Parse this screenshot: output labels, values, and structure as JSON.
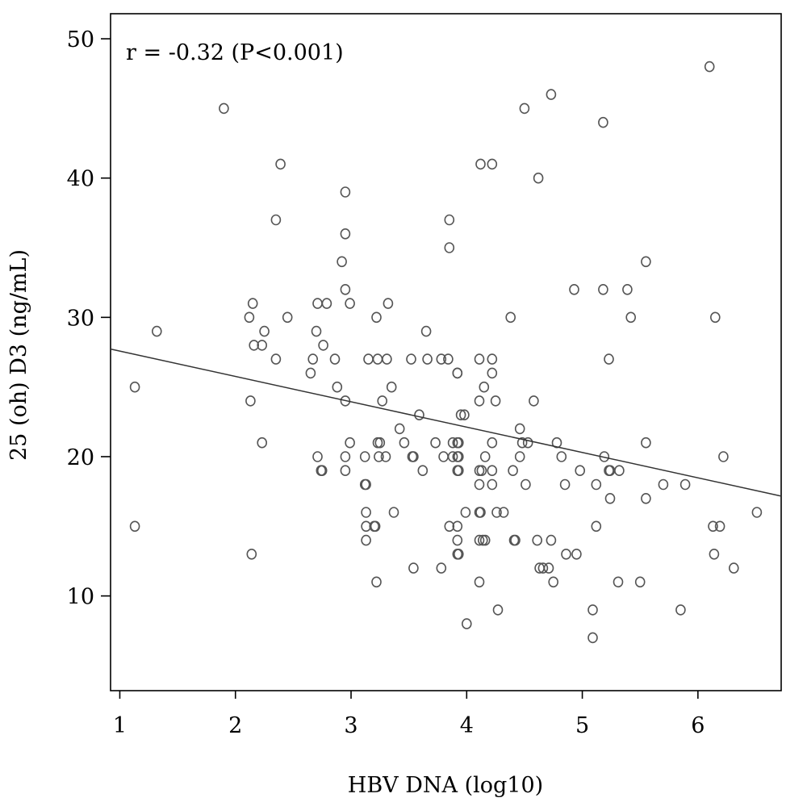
{
  "chart_data": {
    "type": "scatter",
    "xlabel": "HBV DNA (log10)",
    "ylabel": "25 (oh) D3 (ng/mL)",
    "annotation": "r = -0.32 (P<0.001)",
    "xlim": [
      0.92,
      6.72
    ],
    "ylim": [
      3.2,
      51.8
    ],
    "xticks": [
      1,
      2,
      3,
      4,
      5,
      6
    ],
    "yticks": [
      10,
      20,
      30,
      40,
      50
    ],
    "xtick_labels": [
      "1",
      "2",
      "3",
      "4",
      "5",
      "6"
    ],
    "ytick_labels": [
      "10",
      "20",
      "30",
      "40",
      "50"
    ],
    "grid": false,
    "legend": false,
    "fit_line": {
      "slope": -1.82,
      "intercept": 29.4,
      "x_range": [
        0.92,
        6.72
      ]
    },
    "points": [
      [
        1.13,
        25
      ],
      [
        1.13,
        15
      ],
      [
        1.32,
        29
      ],
      [
        1.9,
        45
      ],
      [
        2.12,
        30
      ],
      [
        2.13,
        24
      ],
      [
        2.14,
        13
      ],
      [
        2.15,
        31
      ],
      [
        2.16,
        28
      ],
      [
        2.23,
        28
      ],
      [
        2.23,
        21
      ],
      [
        2.25,
        29
      ],
      [
        2.35,
        37
      ],
      [
        2.35,
        27
      ],
      [
        2.39,
        41
      ],
      [
        2.45,
        30
      ],
      [
        2.65,
        26
      ],
      [
        2.67,
        27
      ],
      [
        2.7,
        29
      ],
      [
        2.71,
        20
      ],
      [
        2.71,
        31
      ],
      [
        2.74,
        19
      ],
      [
        2.75,
        19
      ],
      [
        2.76,
        28
      ],
      [
        2.79,
        31
      ],
      [
        2.86,
        27
      ],
      [
        2.88,
        25
      ],
      [
        2.92,
        34
      ],
      [
        2.95,
        39
      ],
      [
        2.95,
        36
      ],
      [
        2.95,
        32
      ],
      [
        2.95,
        24
      ],
      [
        2.95,
        20
      ],
      [
        2.95,
        19
      ],
      [
        2.99,
        31
      ],
      [
        2.99,
        21
      ],
      [
        3.12,
        20
      ],
      [
        3.12,
        18
      ],
      [
        3.13,
        18
      ],
      [
        3.13,
        16
      ],
      [
        3.13,
        15
      ],
      [
        3.13,
        14
      ],
      [
        3.15,
        27
      ],
      [
        3.2,
        15
      ],
      [
        3.21,
        15
      ],
      [
        3.22,
        11
      ],
      [
        3.22,
        30
      ],
      [
        3.23,
        27
      ],
      [
        3.23,
        21
      ],
      [
        3.24,
        20
      ],
      [
        3.25,
        21
      ],
      [
        3.27,
        24
      ],
      [
        3.3,
        20
      ],
      [
        3.31,
        27
      ],
      [
        3.32,
        31
      ],
      [
        3.35,
        25
      ],
      [
        3.37,
        16
      ],
      [
        3.42,
        22
      ],
      [
        3.46,
        21
      ],
      [
        3.52,
        27
      ],
      [
        3.53,
        20
      ],
      [
        3.54,
        20
      ],
      [
        3.54,
        12
      ],
      [
        3.59,
        23
      ],
      [
        3.62,
        19
      ],
      [
        3.65,
        29
      ],
      [
        3.66,
        27
      ],
      [
        3.73,
        21
      ],
      [
        3.78,
        27
      ],
      [
        3.78,
        12
      ],
      [
        3.8,
        20
      ],
      [
        3.84,
        27
      ],
      [
        3.85,
        37
      ],
      [
        3.85,
        35
      ],
      [
        3.85,
        15
      ],
      [
        3.88,
        20
      ],
      [
        3.88,
        21
      ],
      [
        3.92,
        26
      ],
      [
        3.92,
        26
      ],
      [
        3.92,
        21
      ],
      [
        3.92,
        20
      ],
      [
        3.92,
        19
      ],
      [
        3.92,
        15
      ],
      [
        3.92,
        14
      ],
      [
        3.92,
        13
      ],
      [
        3.93,
        21
      ],
      [
        3.93,
        20
      ],
      [
        3.93,
        19
      ],
      [
        3.93,
        13
      ],
      [
        3.95,
        23
      ],
      [
        3.98,
        23
      ],
      [
        3.99,
        16
      ],
      [
        4.0,
        8
      ],
      [
        4.11,
        27
      ],
      [
        4.11,
        24
      ],
      [
        4.11,
        19
      ],
      [
        4.11,
        18
      ],
      [
        4.11,
        16
      ],
      [
        4.11,
        14
      ],
      [
        4.11,
        11
      ],
      [
        4.12,
        41
      ],
      [
        4.12,
        16
      ],
      [
        4.13,
        19
      ],
      [
        4.14,
        14
      ],
      [
        4.15,
        25
      ],
      [
        4.16,
        14
      ],
      [
        4.16,
        20
      ],
      [
        4.22,
        41
      ],
      [
        4.22,
        27
      ],
      [
        4.22,
        26
      ],
      [
        4.22,
        21
      ],
      [
        4.22,
        19
      ],
      [
        4.22,
        18
      ],
      [
        4.25,
        24
      ],
      [
        4.26,
        16
      ],
      [
        4.27,
        9
      ],
      [
        4.32,
        16
      ],
      [
        4.38,
        30
      ],
      [
        4.4,
        19
      ],
      [
        4.41,
        14
      ],
      [
        4.42,
        14
      ],
      [
        4.46,
        22
      ],
      [
        4.46,
        20
      ],
      [
        4.48,
        21
      ],
      [
        4.5,
        45
      ],
      [
        4.51,
        18
      ],
      [
        4.53,
        21
      ],
      [
        4.58,
        24
      ],
      [
        4.61,
        14
      ],
      [
        4.62,
        40
      ],
      [
        4.63,
        12
      ],
      [
        4.66,
        12
      ],
      [
        4.71,
        12
      ],
      [
        4.73,
        46
      ],
      [
        4.73,
        14
      ],
      [
        4.75,
        11
      ],
      [
        4.78,
        21
      ],
      [
        4.82,
        20
      ],
      [
        4.85,
        18
      ],
      [
        4.86,
        13
      ],
      [
        4.93,
        32
      ],
      [
        4.95,
        13
      ],
      [
        4.98,
        19
      ],
      [
        5.09,
        9
      ],
      [
        5.09,
        7
      ],
      [
        5.12,
        18
      ],
      [
        5.12,
        15
      ],
      [
        5.18,
        44
      ],
      [
        5.18,
        32
      ],
      [
        5.19,
        20
      ],
      [
        5.23,
        27
      ],
      [
        5.23,
        19
      ],
      [
        5.24,
        19
      ],
      [
        5.24,
        17
      ],
      [
        5.31,
        11
      ],
      [
        5.32,
        19
      ],
      [
        5.39,
        32
      ],
      [
        5.42,
        30
      ],
      [
        5.5,
        11
      ],
      [
        5.55,
        34
      ],
      [
        5.55,
        21
      ],
      [
        5.55,
        17
      ],
      [
        5.7,
        18
      ],
      [
        5.85,
        9
      ],
      [
        5.89,
        18
      ],
      [
        6.1,
        48
      ],
      [
        6.13,
        15
      ],
      [
        6.14,
        13
      ],
      [
        6.15,
        30
      ],
      [
        6.19,
        15
      ],
      [
        6.22,
        20
      ],
      [
        6.31,
        12
      ],
      [
        6.51,
        16
      ]
    ]
  }
}
